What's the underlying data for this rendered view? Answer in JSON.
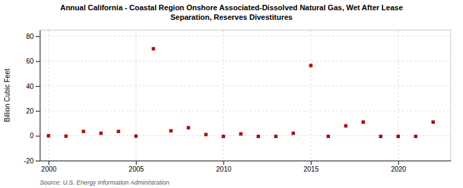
{
  "chart_data": {
    "type": "scatter",
    "title": "Annual California - Coastal Region Onshore Associated-Dissolved Natural Gas, Wet After Lease\nSeparation, Reserves Divestitures",
    "y_label": "Billion Cubic Feet",
    "source": "Source: U.S. Energy Information Administration",
    "x": [
      2000,
      2001,
      2002,
      2003,
      2004,
      2005,
      2006,
      2007,
      2008,
      2009,
      2010,
      2011,
      2012,
      2013,
      2014,
      2015,
      2016,
      2017,
      2018,
      2019,
      2020,
      2021,
      2022
    ],
    "values": [
      0.0,
      -0.3,
      3.5,
      2.0,
      3.5,
      -0.3,
      70.0,
      4.0,
      6.5,
      1.0,
      -0.5,
      1.5,
      -0.5,
      -0.5,
      2.0,
      56.5,
      -0.5,
      8.0,
      11.0,
      -0.5,
      -0.5,
      -0.5,
      11.0
    ],
    "color": "#aa1111",
    "marker": "square",
    "xlim": [
      1999.5,
      2023
    ],
    "xticks": [
      2000,
      2005,
      2010,
      2015,
      2020
    ],
    "ylim": [
      -20,
      85
    ],
    "yticks": [
      -20,
      0,
      20,
      40,
      60,
      80
    ],
    "grid": true
  }
}
